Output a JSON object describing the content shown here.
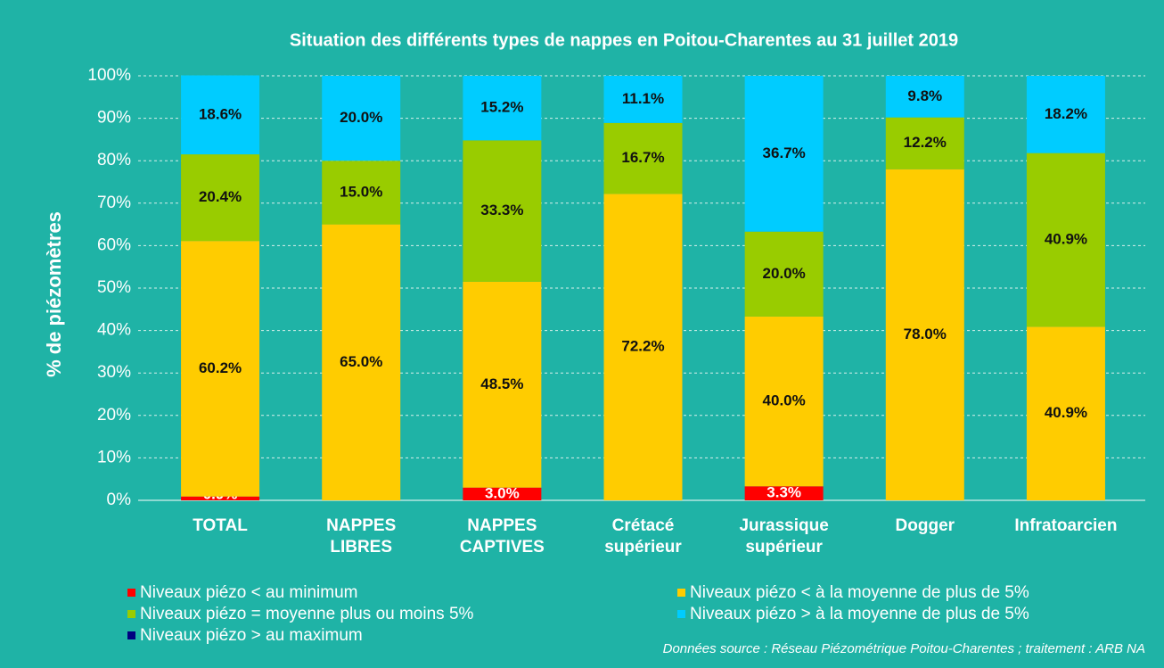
{
  "chart_data": {
    "type": "stacked_bar",
    "title": "Situation des différents types de nappes en Poitou-Charentes au 31 juillet 2019",
    "y_label": "% de piézomètres",
    "annotation": "Données source : Réseau Piézométrique Poitou-Charentes ; traitement : ARB NA",
    "categories": [
      "TOTAL",
      "NAPPES LIBRES",
      "NAPPES CAPTIVES",
      "Crétacé supérieur",
      "Jurassique supérieur",
      "Dogger",
      "Infratoarcien"
    ],
    "series": [
      {
        "name": "Niveaux piézo < au minimum",
        "color": "#ff0000",
        "values": [
          0.9,
          0,
          3.0,
          0,
          3.3,
          0,
          0
        ],
        "value_labels": [
          "0.9%",
          null,
          "3.0%",
          null,
          "3.3%",
          null,
          null
        ]
      },
      {
        "name": "Niveaux piézo < à la moyenne de plus de 5%",
        "color": "#ffcc00",
        "values": [
          60.2,
          65.0,
          48.5,
          72.2,
          40.0,
          78.0,
          40.9
        ],
        "value_labels": [
          "60.2%",
          "65.0%",
          "48.5%",
          "72.2%",
          "40.0%",
          "78.0%",
          "40.9%"
        ]
      },
      {
        "name": "Niveaux piézo = moyenne plus ou moins 5%",
        "color": "#99cc00",
        "values": [
          20.4,
          15.0,
          33.3,
          16.7,
          20.0,
          12.2,
          40.9
        ],
        "value_labels": [
          "20.4%",
          "15.0%",
          "33.3%",
          "16.7%",
          "20.0%",
          "12.2%",
          "40.9%"
        ]
      },
      {
        "name": "Niveaux piézo > à la moyenne de plus de 5%",
        "color": "#00ccff",
        "values": [
          18.6,
          20.0,
          15.2,
          11.1,
          36.7,
          9.8,
          18.2
        ],
        "value_labels": [
          "18.6%",
          "20.0%",
          "15.2%",
          "11.1%",
          "36.7%",
          "9.8%",
          "18.2%"
        ]
      },
      {
        "name": "Niveaux piézo > au maximum",
        "color": "#000080",
        "values": [
          0,
          0,
          0,
          0,
          0,
          0,
          0
        ],
        "value_labels": [
          null,
          null,
          null,
          null,
          null,
          null,
          null
        ]
      }
    ],
    "ylim": [
      0,
      100
    ],
    "yticks": [
      {
        "value": 0,
        "label": "0%"
      },
      {
        "value": 10,
        "label": "10%"
      },
      {
        "value": 20,
        "label": "20%"
      },
      {
        "value": 30,
        "label": "30%"
      },
      {
        "value": 40,
        "label": "40%"
      },
      {
        "value": 50,
        "label": "50%"
      },
      {
        "value": 60,
        "label": "60%"
      },
      {
        "value": 70,
        "label": "70%"
      },
      {
        "value": 80,
        "label": "80%"
      },
      {
        "value": 90,
        "label": "90%"
      },
      {
        "value": 100,
        "label": "100%"
      }
    ],
    "grid": true
  }
}
